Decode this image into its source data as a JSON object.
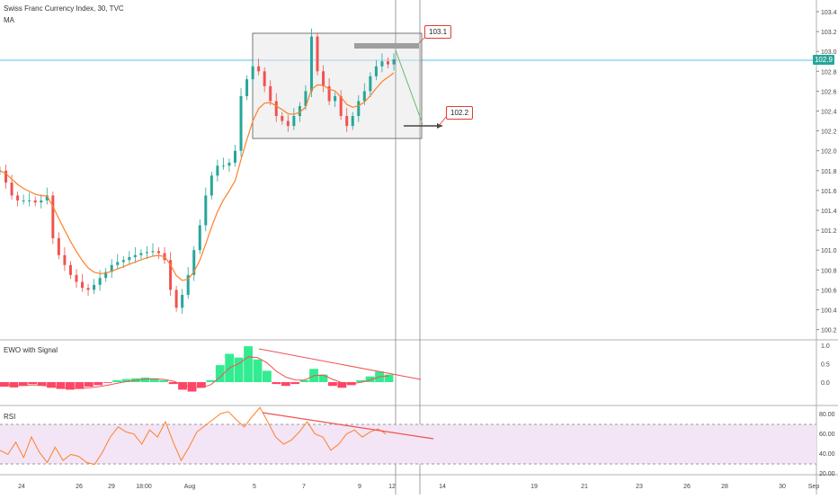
{
  "header": {
    "title": "Swiss Franc Currency Index, 30, TVC",
    "indicator": "MA"
  },
  "main": {
    "price_ticks": [
      "103.4",
      "103.2",
      "103.0",
      "102.8",
      "102.6",
      "102.4",
      "102.2",
      "102.0",
      "101.8",
      "101.6",
      "101.4",
      "101.2",
      "101.0",
      "100.8",
      "100.6",
      "100.4",
      "100.2"
    ],
    "last_price": "102.9",
    "callouts": [
      {
        "text": "103.1"
      },
      {
        "text": "102.2"
      }
    ]
  },
  "ewo": {
    "title": "EWO with Signal",
    "ticks": [
      "1.0",
      "0.5",
      "0.0"
    ]
  },
  "rsi": {
    "title": "RSI",
    "ticks": [
      "80.00",
      "60.00",
      "40.00",
      "20.00"
    ]
  },
  "x_ticks": [
    "24",
    "26",
    "29",
    "18:00",
    "Aug",
    "5",
    "7",
    "9",
    "12",
    "14",
    "19",
    "21",
    "23",
    "26",
    "28",
    "30",
    "Sep"
  ],
  "colors": {
    "up": "#26a69a",
    "down": "#ef5350",
    "ma": "#ff7f2a",
    "ewo_pos": "#00e676",
    "ewo_neg": "#ff1744",
    "rsi_line": "#ff7f2a",
    "rsi_band": "#f3e5f5",
    "trend": "#ef5350",
    "hline": "#4fc3f7"
  },
  "chart_data": [
    {
      "type": "candlestick",
      "title": "Swiss Franc Currency Index, 30, TVC",
      "y_range": [
        100.1,
        103.45
      ],
      "close_path": [
        [
          0,
          101.8
        ],
        [
          2,
          101.68
        ],
        [
          4,
          101.55
        ],
        [
          6,
          101.5
        ],
        [
          8,
          101.5
        ],
        [
          10,
          101.5
        ],
        [
          12,
          101.48
        ],
        [
          14,
          101.5
        ],
        [
          16,
          101.55
        ],
        [
          18,
          101.12
        ],
        [
          20,
          100.95
        ],
        [
          22,
          100.85
        ],
        [
          24,
          100.75
        ],
        [
          26,
          100.68
        ],
        [
          28,
          100.62
        ],
        [
          30,
          100.6
        ],
        [
          32,
          100.65
        ],
        [
          34,
          100.72
        ],
        [
          36,
          100.78
        ],
        [
          38,
          100.85
        ],
        [
          40,
          100.88
        ],
        [
          42,
          100.9
        ],
        [
          44,
          100.93
        ],
        [
          46,
          100.95
        ],
        [
          48,
          100.97
        ],
        [
          50,
          100.98
        ],
        [
          52,
          100.99
        ],
        [
          54,
          100.97
        ],
        [
          56,
          100.9
        ],
        [
          58,
          100.6
        ],
        [
          60,
          100.42
        ],
        [
          62,
          100.55
        ],
        [
          64,
          100.75
        ],
        [
          66,
          101.0
        ],
        [
          68,
          101.25
        ],
        [
          70,
          101.55
        ],
        [
          72,
          101.75
        ],
        [
          74,
          101.85
        ],
        [
          76,
          101.85
        ],
        [
          78,
          101.88
        ],
        [
          80,
          102.0
        ],
        [
          82,
          102.55
        ],
        [
          84,
          102.72
        ],
        [
          86,
          102.85
        ],
        [
          88,
          102.8
        ],
        [
          90,
          102.65
        ],
        [
          92,
          102.5
        ],
        [
          94,
          102.35
        ],
        [
          96,
          102.3
        ],
        [
          98,
          102.25
        ],
        [
          100,
          102.35
        ],
        [
          102,
          102.45
        ],
        [
          104,
          102.6
        ],
        [
          106,
          103.15
        ],
        [
          108,
          102.8
        ],
        [
          110,
          102.65
        ],
        [
          112,
          102.5
        ],
        [
          114,
          102.55
        ],
        [
          116,
          102.35
        ],
        [
          118,
          102.25
        ],
        [
          120,
          102.35
        ],
        [
          122,
          102.5
        ],
        [
          124,
          102.6
        ],
        [
          126,
          102.75
        ],
        [
          128,
          102.85
        ],
        [
          130,
          102.9
        ],
        [
          132,
          102.87
        ],
        [
          134,
          102.92
        ]
      ]
    },
    {
      "type": "line",
      "title": "MA",
      "series": [
        {
          "values_follow": "smoothed close"
        }
      ]
    },
    {
      "type": "bar",
      "title": "EWO with Signal",
      "y_range": [
        -0.3,
        1.0
      ],
      "values": [
        -0.12,
        -0.14,
        -0.1,
        -0.05,
        -0.1,
        -0.15,
        -0.18,
        -0.2,
        -0.18,
        -0.12,
        -0.08,
        -0.02,
        0.05,
        0.08,
        0.1,
        0.12,
        0.1,
        0.05,
        -0.05,
        -0.2,
        -0.25,
        -0.15,
        0.05,
        0.45,
        0.75,
        0.65,
        0.95,
        0.6,
        0.3,
        -0.05,
        -0.1,
        -0.05,
        0.05,
        0.35,
        0.2,
        -0.1,
        -0.15,
        -0.08,
        0.05,
        0.15,
        0.28,
        0.2
      ]
    },
    {
      "type": "line",
      "title": "RSI",
      "y_range": [
        18,
        86
      ],
      "band": [
        30,
        70
      ],
      "values": [
        42,
        38,
        50,
        35,
        55,
        40,
        30,
        45,
        32,
        38,
        36,
        30,
        28,
        40,
        55,
        65,
        60,
        58,
        48,
        62,
        55,
        70,
        50,
        32,
        45,
        60,
        66,
        72,
        78,
        80,
        72,
        65,
        75,
        84,
        70,
        55,
        48,
        52,
        60,
        70,
        58,
        55,
        42,
        48,
        58,
        62,
        55,
        60,
        63,
        58
      ]
    }
  ]
}
